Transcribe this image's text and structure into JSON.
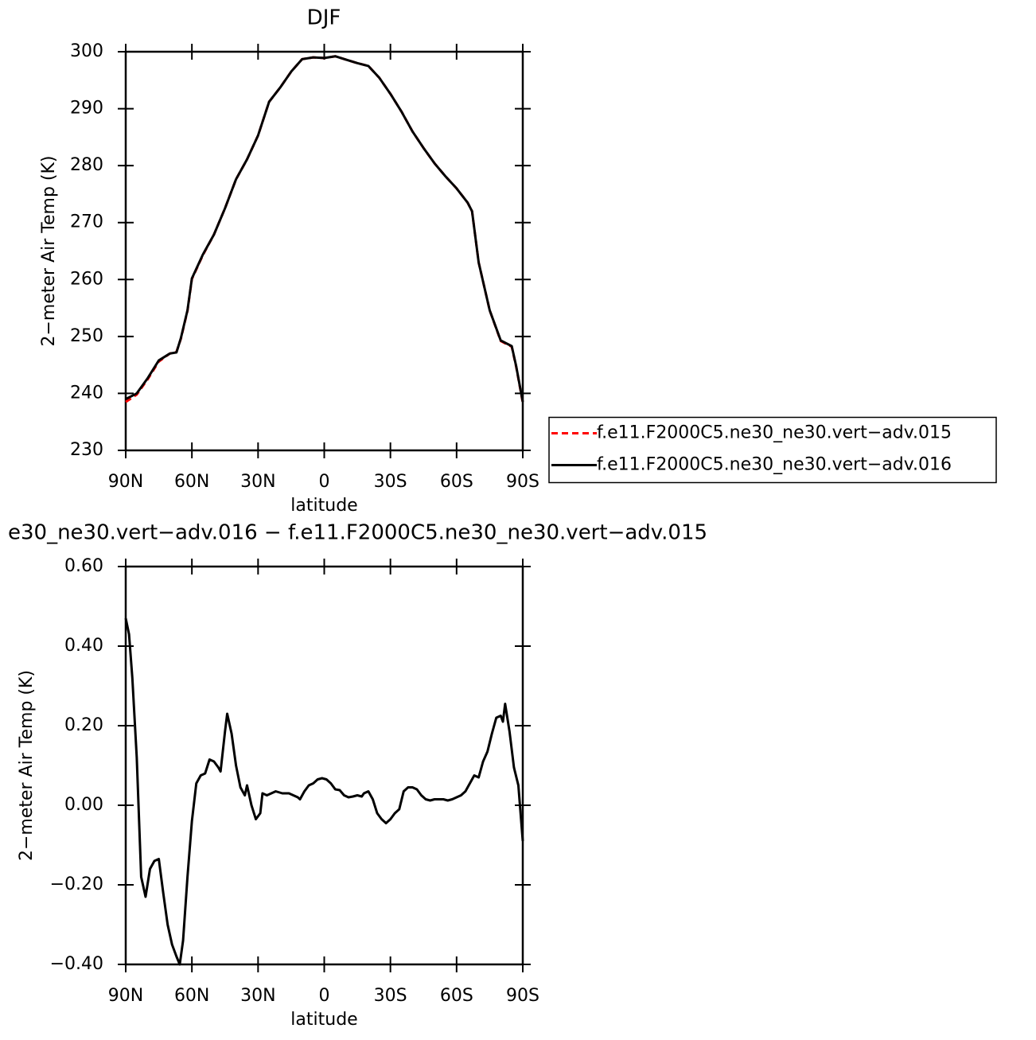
{
  "chart_data": [
    {
      "type": "line",
      "title": "DJF",
      "xlabel": "latitude",
      "ylabel": "2−meter Air Temp (K)",
      "x": [
        90,
        85,
        80,
        75,
        70,
        67,
        65,
        62,
        60,
        55,
        50,
        45,
        40,
        35,
        30,
        25,
        20,
        15,
        10,
        5,
        0,
        -5,
        -10,
        -15,
        -20,
        -25,
        -30,
        -35,
        -40,
        -45,
        -50,
        -55,
        -60,
        -65,
        -67,
        -70,
        -75,
        -80,
        -85,
        -87,
        -90
      ],
      "series": [
        {
          "name": "f.e11.F2000C5.ne30_ne30.vert−adv.015",
          "color": "#ff0000",
          "line_style": "dashed",
          "values": [
            238.5,
            239.8,
            242.5,
            245.6,
            247,
            247.3,
            249.6,
            254.5,
            260.1,
            264.3,
            267.9,
            272.5,
            277.6,
            281.1,
            285.3,
            291.2,
            293.7,
            296.5,
            298.7,
            299,
            298.9,
            299.2,
            298.6,
            298,
            297.5,
            295.4,
            292.6,
            289.5,
            286,
            283.1,
            280.4,
            278.1,
            276,
            273.5,
            272,
            263,
            254.6,
            249.2,
            248.2,
            244.7,
            238.4
          ]
        },
        {
          "name": "f.e11.F2000C5.ne30_ne30.vert−adv.016",
          "color": "#000000",
          "line_style": "solid",
          "values": [
            239,
            240,
            242.7,
            245.8,
            247,
            247.2,
            249.7,
            254.6,
            260.2,
            264.4,
            267.9,
            272.5,
            277.6,
            281.1,
            285.3,
            291.2,
            293.7,
            296.5,
            298.7,
            299,
            298.9,
            299.2,
            298.6,
            298,
            297.5,
            295.4,
            292.6,
            289.5,
            286,
            283.1,
            280.4,
            278.1,
            276,
            273.5,
            272,
            263,
            254.6,
            249.3,
            248.3,
            244.8,
            238.5
          ]
        }
      ],
      "xlim": [
        90,
        -90
      ],
      "xticks": [
        {
          "value": 90,
          "label": "90N"
        },
        {
          "value": 60,
          "label": "60N"
        },
        {
          "value": 30,
          "label": "30N"
        },
        0,
        {
          "value": -30,
          "label": "30S"
        },
        {
          "value": -60,
          "label": "60S"
        },
        {
          "value": -90,
          "label": "90S"
        }
      ],
      "ylim": [
        230,
        300
      ],
      "yticks": [
        230,
        240,
        250,
        260,
        270,
        280,
        290,
        300
      ],
      "legend": "right"
    },
    {
      "type": "line",
      "title": "e30_ne30.vert−adv.016 − f.e11.F2000C5.ne30_ne30.vert−adv.015",
      "xlabel": "latitude",
      "ylabel": "2−meter Air Temp (K)",
      "x": [
        90,
        88.5,
        87,
        85,
        83,
        81,
        79,
        77,
        75,
        73,
        71,
        69,
        67,
        65.5,
        64,
        62,
        60,
        58,
        56,
        54,
        52,
        50,
        48,
        47,
        45,
        44,
        42,
        40,
        38,
        36,
        35,
        33,
        31,
        29,
        28,
        26,
        24,
        22,
        19,
        16,
        14,
        12,
        11,
        9,
        7,
        5,
        3,
        1,
        -1,
        -3,
        -5,
        -7,
        -9,
        -11,
        -13,
        -15,
        -17,
        -18,
        -20,
        -22,
        -24,
        -26,
        -28,
        -30,
        -32,
        -34,
        -36,
        -38,
        -40,
        -42,
        -44,
        -46,
        -48,
        -50,
        -54,
        -56,
        -58,
        -60,
        -62,
        -64,
        -66,
        -68,
        -70,
        -72,
        -74,
        -76,
        -78,
        -80,
        -81,
        -82,
        -84,
        -86,
        -88,
        -90
      ],
      "series": [
        {
          "color": "#000000",
          "line_style": "solid",
          "values": [
            0.47,
            0.43,
            0.32,
            0.12,
            -0.18,
            -0.23,
            -0.16,
            -0.14,
            -0.135,
            -0.22,
            -0.3,
            -0.35,
            -0.38,
            -0.4,
            -0.34,
            -0.18,
            -0.04,
            0.055,
            0.075,
            0.08,
            0.115,
            0.11,
            0.095,
            0.085,
            0.185,
            0.23,
            0.18,
            0.1,
            0.045,
            0.025,
            0.05,
            0,
            -0.035,
            -0.02,
            0.03,
            0.025,
            0.03,
            0.035,
            0.03,
            0.03,
            0.025,
            0.02,
            0.015,
            0.035,
            0.05,
            0.055,
            0.065,
            0.068,
            0.065,
            0.055,
            0.04,
            0.038,
            0.025,
            0.02,
            0.022,
            0.025,
            0.022,
            0.03,
            0.035,
            0.015,
            -0.02,
            -0.035,
            -0.045,
            -0.035,
            -0.02,
            -0.01,
            0.035,
            0.045,
            0.045,
            0.04,
            0.025,
            0.015,
            0.012,
            0.015,
            0.015,
            0.012,
            0.015,
            0.02,
            0.025,
            0.035,
            0.055,
            0.075,
            0.07,
            0.11,
            0.135,
            0.18,
            0.22,
            0.225,
            0.21,
            0.255,
            0.185,
            0.095,
            0.05,
            -0.09
          ]
        }
      ],
      "xlim": [
        90,
        -90
      ],
      "xticks": [
        {
          "value": 90,
          "label": "90N"
        },
        {
          "value": 60,
          "label": "60N"
        },
        {
          "value": 30,
          "label": "30N"
        },
        0,
        {
          "value": -30,
          "label": "30S"
        },
        {
          "value": -60,
          "label": "60S"
        },
        {
          "value": -90,
          "label": "90S"
        }
      ],
      "ylim": [
        -0.4,
        0.6
      ],
      "yticks": [
        {
          "value": -0.4,
          "label": "−0.40"
        },
        {
          "value": -0.2,
          "label": "−0.20"
        },
        {
          "value": 0,
          "label": "0.00"
        },
        {
          "value": 0.2,
          "label": "0.20"
        },
        {
          "value": 0.4,
          "label": "0.40"
        },
        {
          "value": 0.6,
          "label": "0.60"
        }
      ]
    }
  ]
}
